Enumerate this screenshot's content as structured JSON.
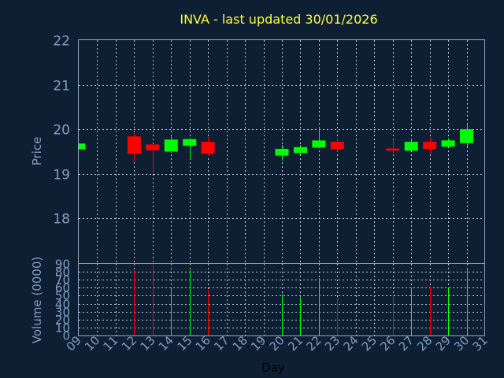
{
  "colors": {
    "background": "#0f1f33",
    "title": "#ffff33",
    "axis_text": "#7f9ec4",
    "frame": "#8ea6c2",
    "grid": "#b6c4d6",
    "up": "#00ff00",
    "down": "#ff0000"
  },
  "chart_data": [
    {
      "type": "candlestick",
      "title": "INVA - last updated 30/01/2026",
      "ylabel": "Price",
      "ylim": [
        17,
        22
      ],
      "yticks": [
        "18",
        "19",
        "20",
        "21",
        "22"
      ],
      "x": [
        "09",
        "10",
        "11",
        "12",
        "13",
        "14",
        "15",
        "16",
        "17",
        "18",
        "19",
        "20",
        "21",
        "22",
        "23",
        "24",
        "25",
        "26",
        "27",
        "28",
        "29",
        "30",
        "31"
      ],
      "grid": true,
      "candles": [
        {
          "day": "09",
          "open": 19.55,
          "high": 19.68,
          "low": 19.55,
          "close": 19.68
        },
        {
          "day": "12",
          "open": 19.84,
          "high": 19.92,
          "low": 19.27,
          "close": 19.45
        },
        {
          "day": "13",
          "open": 19.66,
          "high": 19.66,
          "low": 19.0,
          "close": 19.53
        },
        {
          "day": "14",
          "open": 19.5,
          "high": 19.84,
          "low": 19.47,
          "close": 19.77
        },
        {
          "day": "15",
          "open": 19.63,
          "high": 19.8,
          "low": 19.33,
          "close": 19.78
        },
        {
          "day": "16",
          "open": 19.72,
          "high": 19.82,
          "low": 19.4,
          "close": 19.45
        },
        {
          "day": "20",
          "open": 19.41,
          "high": 19.65,
          "low": 19.3,
          "close": 19.56
        },
        {
          "day": "21",
          "open": 19.47,
          "high": 19.65,
          "low": 19.44,
          "close": 19.6
        },
        {
          "day": "22",
          "open": 19.59,
          "high": 20.05,
          "low": 19.59,
          "close": 19.75
        },
        {
          "day": "23",
          "open": 19.72,
          "high": 19.8,
          "low": 19.5,
          "close": 19.55
        },
        {
          "day": "26",
          "open": 19.57,
          "high": 19.77,
          "low": 19.42,
          "close": 19.52
        },
        {
          "day": "27",
          "open": 19.52,
          "high": 19.78,
          "low": 19.52,
          "close": 19.72
        },
        {
          "day": "28",
          "open": 19.72,
          "high": 19.82,
          "low": 19.46,
          "close": 19.56
        },
        {
          "day": "29",
          "open": 19.61,
          "high": 19.8,
          "low": 19.61,
          "close": 19.75
        },
        {
          "day": "30",
          "open": 19.69,
          "high": 20.15,
          "low": 19.6,
          "close": 20.0
        }
      ]
    },
    {
      "type": "bar",
      "ylabel": "Volume (0000)",
      "xlabel": "Day",
      "ylim": [
        0,
        90
      ],
      "yticks": [
        "0",
        "10",
        "20",
        "30",
        "40",
        "50",
        "60",
        "70",
        "80",
        "90"
      ],
      "x": [
        "09",
        "10",
        "11",
        "12",
        "13",
        "14",
        "15",
        "16",
        "17",
        "18",
        "19",
        "20",
        "21",
        "22",
        "23",
        "24",
        "25",
        "26",
        "27",
        "28",
        "29",
        "30",
        "31"
      ],
      "grid": true,
      "bars": [
        {
          "day": "12",
          "value": 82,
          "direction": "down"
        },
        {
          "day": "13",
          "value": 90,
          "direction": "down"
        },
        {
          "day": "14",
          "value": 60,
          "direction": "up"
        },
        {
          "day": "15",
          "value": 82,
          "direction": "up"
        },
        {
          "day": "16",
          "value": 57,
          "direction": "down"
        },
        {
          "day": "20",
          "value": 52,
          "direction": "up"
        },
        {
          "day": "21",
          "value": 48,
          "direction": "up"
        },
        {
          "day": "22",
          "value": 72,
          "direction": "up"
        },
        {
          "day": "23",
          "value": 48,
          "direction": "down"
        },
        {
          "day": "26",
          "value": 52,
          "direction": "down"
        },
        {
          "day": "27",
          "value": 60,
          "direction": "up"
        },
        {
          "day": "28",
          "value": 62,
          "direction": "down"
        },
        {
          "day": "29",
          "value": 60,
          "direction": "up"
        },
        {
          "day": "30",
          "value": 85,
          "direction": "up"
        }
      ]
    }
  ]
}
